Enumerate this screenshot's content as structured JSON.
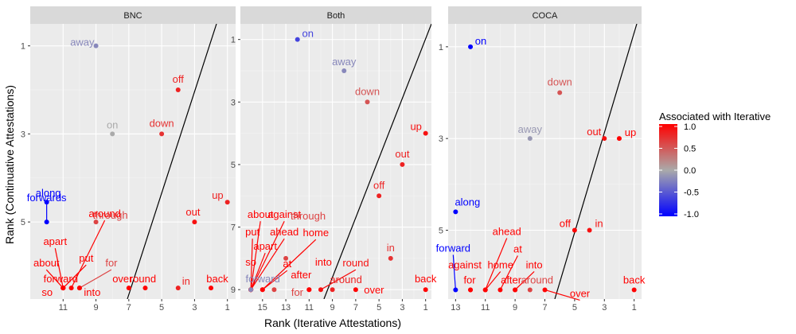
{
  "chart_data": {
    "type": "scatter",
    "xlabel": "Rank (Iterative Attestations)",
    "ylabel": "Rank (Continuative Attestations)",
    "x_reversed": true,
    "y_reversed": true,
    "grid": true,
    "legend": {
      "title": "Associated with Iterative",
      "placement": "right",
      "ticks": [
        "1.0",
        "0.5",
        "0.0",
        "-0.5",
        "-1.0"
      ],
      "range": [
        -1,
        1
      ],
      "colors": {
        "low": "#0000ff",
        "mid": "#aaaaaa",
        "high": "#ff0000"
      }
    },
    "facets": [
      {
        "strip": "BNC",
        "xlim": [
          13,
          0.5
        ],
        "ylim": [
          0.5,
          6.75
        ],
        "x_ticks": [
          11,
          9,
          7,
          5,
          3,
          1
        ],
        "y_ticks": [
          1,
          3,
          5
        ],
        "reference_line": {
          "slope": -2.38,
          "note": "y = x diagonal"
        },
        "points": [
          {
            "label": "away",
            "x": 9,
            "y": 1,
            "value": -0.2
          },
          {
            "label": "off",
            "x": 4,
            "y": 2,
            "value": 0.8
          },
          {
            "label": "on",
            "x": 8,
            "y": 3,
            "value": 0.0
          },
          {
            "label": "down",
            "x": 5,
            "y": 3,
            "value": 0.7
          },
          {
            "label": "along",
            "x": 12,
            "y": 4.55,
            "value": -1.0
          },
          {
            "label": "up",
            "x": 1,
            "y": 4.55,
            "value": 0.8
          },
          {
            "label": "forwards",
            "x": 12,
            "y": 5,
            "value": -1.0
          },
          {
            "label": "through",
            "x": 9,
            "y": 5,
            "value": 0.6
          },
          {
            "label": "out",
            "x": 3,
            "y": 5,
            "value": 0.9
          },
          {
            "label": "around",
            "x": 10.5,
            "y": 6.5,
            "value": 1.0
          },
          {
            "label": "apart",
            "x": 11,
            "y": 6.5,
            "value": 1.0
          },
          {
            "label": "put",
            "x": 11,
            "y": 6.5,
            "value": 1.0
          },
          {
            "label": "for",
            "x": 10,
            "y": 6.5,
            "value": 0.6
          },
          {
            "label": "about",
            "x": 11,
            "y": 6.5,
            "value": 1.0
          },
          {
            "label": "forward",
            "x": 11,
            "y": 6.5,
            "value": 1.0
          },
          {
            "label": "so",
            "x": 11,
            "y": 6.5,
            "value": 1.0
          },
          {
            "label": "into",
            "x": 10,
            "y": 6.5,
            "value": 1.0
          },
          {
            "label": "over",
            "x": 7,
            "y": 6.5,
            "value": 1.0
          },
          {
            "label": "round",
            "x": 6,
            "y": 6.5,
            "value": 1.0
          },
          {
            "label": "in",
            "x": 4,
            "y": 6.5,
            "value": 0.8
          },
          {
            "label": "back",
            "x": 2,
            "y": 6.5,
            "value": 1.0
          }
        ]
      },
      {
        "strip": "Both",
        "xlim": [
          16.9,
          0.5
        ],
        "ylim": [
          0.5,
          9.3
        ],
        "x_ticks": [
          15,
          13,
          11,
          9,
          7,
          5,
          3,
          1
        ],
        "y_ticks": [
          1,
          3,
          5,
          7,
          9
        ],
        "reference_line": {
          "slope": -2.38,
          "note": "y = x diagonal"
        },
        "points": [
          {
            "label": "on",
            "x": 12,
            "y": 1,
            "value": -0.6
          },
          {
            "label": "away",
            "x": 8,
            "y": 2,
            "value": -0.2
          },
          {
            "label": "down",
            "x": 6,
            "y": 3,
            "value": 0.5
          },
          {
            "label": "up",
            "x": 1,
            "y": 4,
            "value": 0.9
          },
          {
            "label": "out",
            "x": 3,
            "y": 5,
            "value": 0.8
          },
          {
            "label": "off",
            "x": 5,
            "y": 6,
            "value": 0.8
          },
          {
            "label": "in",
            "x": 4,
            "y": 8,
            "value": 0.7
          },
          {
            "label": "about",
            "x": 16,
            "y": 9,
            "value": 1.0
          },
          {
            "label": "against",
            "x": 16,
            "y": 9,
            "value": 1.0
          },
          {
            "label": "put",
            "x": 16,
            "y": 9,
            "value": 1.0
          },
          {
            "label": "ahead",
            "x": 16,
            "y": 9,
            "value": 1.0
          },
          {
            "label": "home",
            "x": 15,
            "y": 9,
            "value": 1.0
          },
          {
            "label": "apart",
            "x": 16,
            "y": 9,
            "value": 1.0
          },
          {
            "label": "through",
            "x": 13,
            "y": 8,
            "value": 0.6
          },
          {
            "label": "so",
            "x": 16,
            "y": 9,
            "value": 1.0
          },
          {
            "label": "at",
            "x": 15,
            "y": 9,
            "value": 1.0
          },
          {
            "label": "into",
            "x": 11,
            "y": 9,
            "value": 1.0
          },
          {
            "label": "round",
            "x": 10,
            "y": 9,
            "value": 0.9
          },
          {
            "label": "forward",
            "x": 16,
            "y": 9,
            "value": -0.2
          },
          {
            "label": "after",
            "x": 11,
            "y": 9,
            "value": 1.0
          },
          {
            "label": "around",
            "x": 9,
            "y": 9,
            "value": 0.8
          },
          {
            "label": "back",
            "x": 1,
            "y": 9,
            "value": 1.0
          },
          {
            "label": "for",
            "x": 14,
            "y": 9,
            "value": 0.6
          },
          {
            "label": "over",
            "x": 7,
            "y": 9,
            "value": 1.0
          }
        ]
      },
      {
        "strip": "COCA",
        "xlim": [
          13.5,
          0.5
        ],
        "ylim": [
          0.5,
          6.5
        ],
        "x_ticks": [
          13,
          11,
          9,
          7,
          5,
          3,
          1
        ],
        "y_ticks": [
          1,
          3,
          5
        ],
        "reference_line": {
          "slope": -2.38,
          "note": "y = x diagonal"
        },
        "points": [
          {
            "label": "on",
            "x": 12,
            "y": 1,
            "value": -1.0
          },
          {
            "label": "down",
            "x": 6,
            "y": 2,
            "value": 0.5
          },
          {
            "label": "away",
            "x": 8,
            "y": 3,
            "value": -0.1
          },
          {
            "label": "out",
            "x": 3,
            "y": 3,
            "value": 0.9
          },
          {
            "label": "up",
            "x": 2,
            "y": 3,
            "value": 1.0
          },
          {
            "label": "along",
            "x": 13,
            "y": 4.6,
            "value": -1.0
          },
          {
            "label": "off",
            "x": 5,
            "y": 5,
            "value": 1.0
          },
          {
            "label": "in",
            "x": 4,
            "y": 5,
            "value": 0.9
          },
          {
            "label": "ahead",
            "x": 11,
            "y": 6.3,
            "value": 1.0
          },
          {
            "label": "forward",
            "x": 13,
            "y": 6.3,
            "value": -1.0
          },
          {
            "label": "at",
            "x": 10,
            "y": 6.3,
            "value": 1.0
          },
          {
            "label": "against",
            "x": 12,
            "y": 6.3,
            "value": 1.0
          },
          {
            "label": "home",
            "x": 11,
            "y": 6.3,
            "value": 1.0
          },
          {
            "label": "into",
            "x": 9,
            "y": 6.3,
            "value": 1.0
          },
          {
            "label": "for",
            "x": 12,
            "y": 6.3,
            "value": 1.0
          },
          {
            "label": "after",
            "x": 9,
            "y": 6.3,
            "value": 1.0
          },
          {
            "label": "around",
            "x": 8,
            "y": 6.3,
            "value": 0.6
          },
          {
            "label": "over",
            "x": 7,
            "y": 6.3,
            "value": 1.0
          },
          {
            "label": "back",
            "x": 1,
            "y": 6.3,
            "value": 1.0
          }
        ]
      }
    ]
  }
}
